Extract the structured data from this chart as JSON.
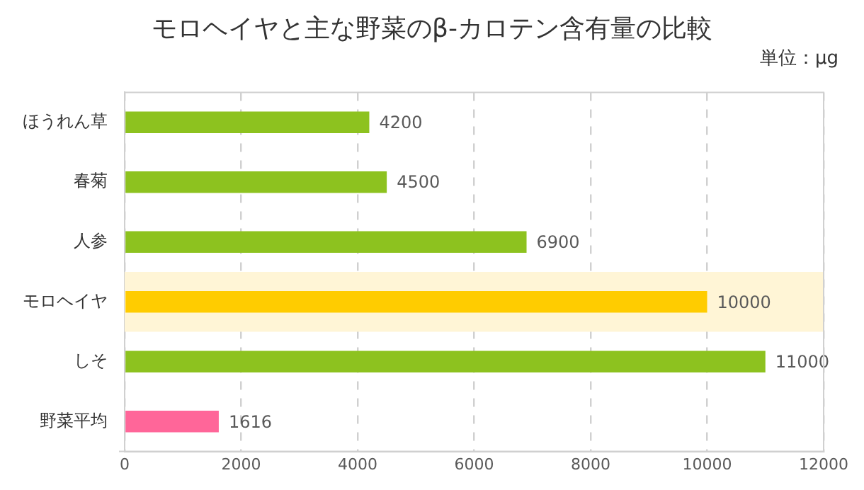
{
  "chart_data": {
    "type": "bar",
    "orientation": "horizontal",
    "title": "モロヘイヤと主な野菜のβ-カロテン含有量の比較",
    "annotations": [
      "単位：μg"
    ],
    "categories": [
      "ほうれん草",
      "春菊",
      "人参",
      "モロヘイヤ",
      "しそ",
      "野菜平均"
    ],
    "values": [
      4200,
      4500,
      6900,
      10000,
      11000,
      1616
    ],
    "colors": [
      "#8dc21f",
      "#8dc21f",
      "#8dc21f",
      "#ffcc00",
      "#8dc21f",
      "#ff6699"
    ],
    "xlim": [
      0,
      12000
    ],
    "xticks": [
      0,
      2000,
      4000,
      6000,
      8000,
      10000,
      12000
    ],
    "grid": "x",
    "data_labels": true,
    "legend": false,
    "bands": [
      {
        "axis": "y",
        "from": "モロヘイヤ",
        "to": "モロヘイヤ",
        "color": "#fff5d6"
      }
    ]
  }
}
